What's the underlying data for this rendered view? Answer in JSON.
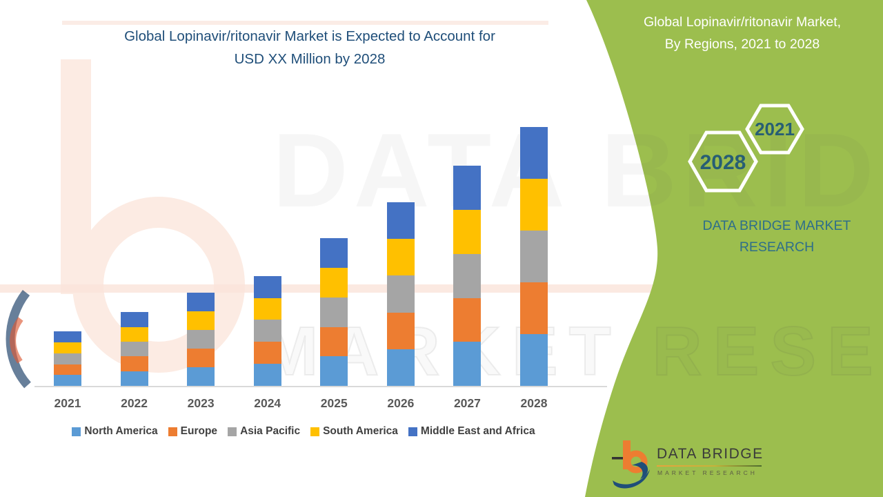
{
  "title": {
    "line1": "Global Lopinavir/ritonavir Market is Expected to Account for",
    "line2": "USD XX Million by 2028"
  },
  "side_panel": {
    "heading_line1": "Global Lopinavir/ritonavir Market,",
    "heading_line2": "By Regions, 2021 to 2028",
    "hex_year_top": "2021",
    "hex_year_bottom": "2028",
    "brand_line1": "DATA BRIDGE MARKET",
    "brand_line2": "RESEARCH",
    "panel_color": "#9CBE4E"
  },
  "logo": {
    "name": "DATA BRIDGE",
    "subtitle": "MARKET RESEARCH"
  },
  "watermark": {
    "text_top": "DATA BRIDGE",
    "text_bottom": "MARKET RESEARCH"
  },
  "chart_data": {
    "type": "bar",
    "stacked": true,
    "title": "Global Lopinavir/ritonavir Market is Expected to Account for USD XX Million by 2028",
    "xlabel": "",
    "ylabel": "",
    "units": "USD XX Million (placeholder, values not labeled on chart)",
    "value_axis_visible": false,
    "grid": false,
    "legend_position": "bottom",
    "categories": [
      "2021",
      "2022",
      "2023",
      "2024",
      "2025",
      "2026",
      "2027",
      "2028"
    ],
    "totals_relative": [
      21,
      28.5,
      36,
      42.5,
      57,
      71,
      85,
      100
    ],
    "series": [
      {
        "name": "North America",
        "color": "#5B9BD5",
        "values": [
          4.2,
          5.7,
          7.2,
          8.5,
          11.4,
          14.2,
          17.0,
          20.0
        ]
      },
      {
        "name": "Europe",
        "color": "#ED7D31",
        "values": [
          4.2,
          5.7,
          7.2,
          8.5,
          11.4,
          14.2,
          17.0,
          20.0
        ]
      },
      {
        "name": "Asia Pacific",
        "color": "#A5A5A5",
        "values": [
          4.2,
          5.7,
          7.2,
          8.5,
          11.4,
          14.2,
          17.0,
          20.0
        ]
      },
      {
        "name": "South America",
        "color": "#FFC000",
        "values": [
          4.2,
          5.7,
          7.2,
          8.5,
          11.4,
          14.2,
          17.0,
          20.0
        ]
      },
      {
        "name": "Middle East and Africa",
        "color": "#4472C4",
        "values": [
          4.2,
          5.7,
          7.2,
          8.5,
          11.4,
          14.2,
          17.0,
          20.0
        ]
      }
    ]
  }
}
